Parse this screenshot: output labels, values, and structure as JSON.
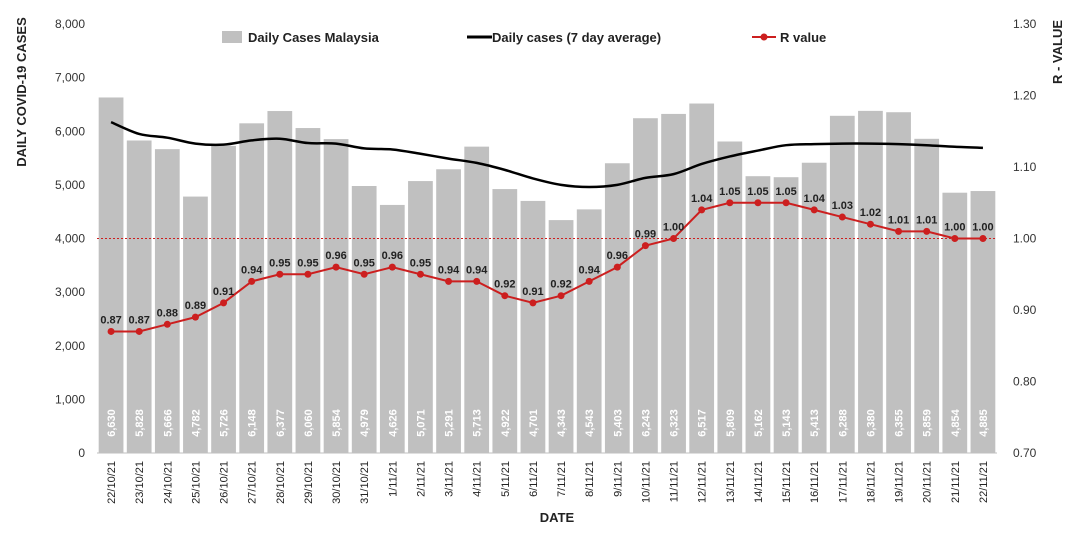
{
  "chart_data": {
    "type": "bar",
    "title": "",
    "xlabel": "DATE",
    "ylabel": "DAILY COVID-19 CASES",
    "y2label": "R - VALUE",
    "ylim": [
      0,
      8000
    ],
    "ylim2": [
      0.7,
      1.3
    ],
    "yticks": [
      "0",
      "1,000",
      "2,000",
      "3,000",
      "4,000",
      "5,000",
      "6,000",
      "7,000",
      "8,000"
    ],
    "yticks2": [
      "0.70",
      "0.80",
      "0.90",
      "1.00",
      "1.10",
      "1.20",
      "1.30"
    ],
    "categories": [
      "22/10/21",
      "23/10/21",
      "24/10/21",
      "25/10/21",
      "26/10/21",
      "27/10/21",
      "28/10/21",
      "29/10/21",
      "30/10/21",
      "31/10/21",
      "1/11/21",
      "2/11/21",
      "3/11/21",
      "4/11/21",
      "5/11/21",
      "6/11/21",
      "7/11/21",
      "8/11/21",
      "9/11/21",
      "10/11/21",
      "11/11/21",
      "12/11/21",
      "13/11/21",
      "14/11/21",
      "15/11/21",
      "16/11/21",
      "17/11/21",
      "18/11/21",
      "19/11/21",
      "20/11/21",
      "21/11/21",
      "22/11/21"
    ],
    "series": [
      {
        "name": "Daily Cases Malaysia",
        "kind": "bar",
        "color": "#c0c0c0",
        "values": [
          6630,
          5828,
          5666,
          4782,
          5726,
          6148,
          6377,
          6060,
          5854,
          4979,
          4626,
          5071,
          5291,
          5713,
          4922,
          4701,
          4343,
          4543,
          5403,
          6243,
          6323,
          6517,
          5809,
          5162,
          5143,
          5413,
          6288,
          6380,
          6355,
          5859,
          4854,
          4885
        ],
        "labels": [
          "6,630",
          "5,828",
          "5,666",
          "4,782",
          "5,726",
          "6,148",
          "6,377",
          "6,060",
          "5,854",
          "4,979",
          "4,626",
          "5,071",
          "5,291",
          "5,713",
          "4,922",
          "4,701",
          "4,343",
          "4,543",
          "5,403",
          "6,243",
          "6,323",
          "6,517",
          "5,809",
          "5,162",
          "5,143",
          "5,413",
          "6,288",
          "6,380",
          "6,355",
          "5,859",
          "4,854",
          "4,885"
        ]
      },
      {
        "name": "Daily cases (7 day average)",
        "kind": "line",
        "color": "#000000",
        "values": [
          6170,
          5950,
          5880,
          5770,
          5750,
          5830,
          5860,
          5780,
          5770,
          5680,
          5660,
          5580,
          5490,
          5410,
          5280,
          5120,
          5000,
          4960,
          5000,
          5130,
          5200,
          5390,
          5530,
          5640,
          5740,
          5760,
          5770,
          5770,
          5760,
          5740,
          5710,
          5690
        ]
      },
      {
        "name": "R value",
        "kind": "line-markers",
        "axis": "secondary",
        "color": "#cc1f1f",
        "values": [
          0.87,
          0.87,
          0.88,
          0.89,
          0.91,
          0.94,
          0.95,
          0.95,
          0.96,
          0.95,
          0.96,
          0.95,
          0.94,
          0.94,
          0.92,
          0.91,
          0.92,
          0.94,
          0.96,
          0.99,
          1.0,
          1.04,
          1.05,
          1.05,
          1.05,
          1.04,
          1.03,
          1.02,
          1.01,
          1.01,
          1.0,
          1.0
        ],
        "labels": [
          "0.87",
          "0.87",
          "0.88",
          "0.89",
          "0.91",
          "0.94",
          "0.95",
          "0.95",
          "0.96",
          "0.95",
          "0.96",
          "0.95",
          "0.94",
          "0.94",
          "0.92",
          "0.91",
          "0.92",
          "0.94",
          "0.96",
          "0.99",
          "1.00",
          "1.04",
          "1.05",
          "1.05",
          "1.05",
          "1.04",
          "1.03",
          "1.02",
          "1.01",
          "1.01",
          "1.00",
          "1.00"
        ]
      }
    ],
    "reference_line": {
      "axis": "secondary",
      "value": 1.0,
      "color": "#cc1f1f",
      "style": "dotted"
    },
    "legend": {
      "placement": "top",
      "items": [
        {
          "label": "Daily Cases Malaysia",
          "kind": "bar",
          "color": "#c0c0c0"
        },
        {
          "label": "Daily cases (7 day average)",
          "kind": "line",
          "color": "#000000"
        },
        {
          "label": "R value",
          "kind": "line-markers",
          "color": "#cc1f1f"
        }
      ]
    }
  }
}
